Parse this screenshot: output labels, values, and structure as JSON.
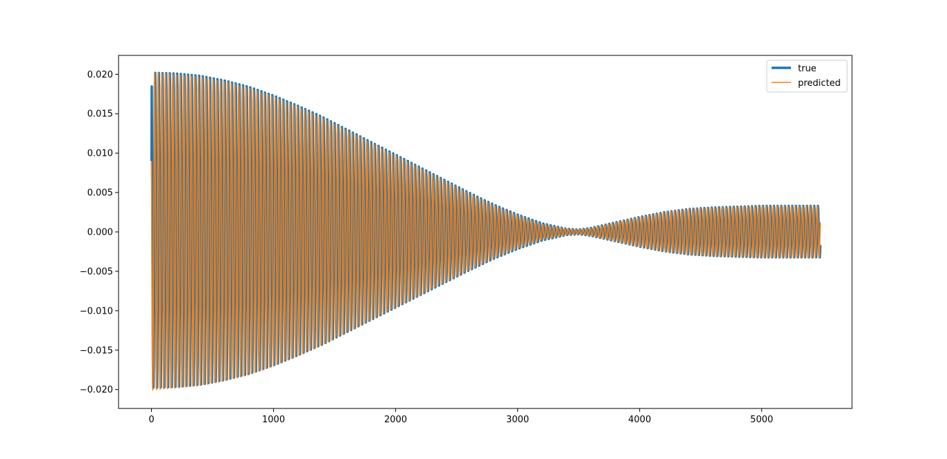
{
  "chart_data": {
    "type": "line",
    "title": "",
    "xlabel": "",
    "ylabel": "",
    "xlim": [
      -270,
      5740
    ],
    "ylim": [
      -0.0224,
      0.0224
    ],
    "grid": false,
    "legend_position": "top-right",
    "x_ticks": [
      0,
      1000,
      2000,
      3000,
      4000,
      5000
    ],
    "x_tick_labels": [
      "0",
      "1000",
      "2000",
      "3000",
      "4000",
      "5000"
    ],
    "y_ticks": [
      0.02,
      0.015,
      0.01,
      0.005,
      0.0,
      -0.005,
      -0.01,
      -0.015,
      -0.02
    ],
    "y_tick_labels": [
      "0.020",
      "0.015",
      "0.010",
      "0.005",
      "0.000",
      "−0.005",
      "−0.010",
      "−0.015",
      "−0.020"
    ],
    "oscillation_period": 30,
    "series": [
      {
        "name": "true",
        "color": "#1f77b4",
        "x": [
          0,
          200,
          400,
          600,
          800,
          1000,
          1200,
          1400,
          1600,
          1800,
          2000,
          2200,
          2400,
          2600,
          2800,
          3000,
          3200,
          3400,
          3500,
          3600,
          3800,
          4000,
          4200,
          4400,
          4600,
          4800,
          5000,
          5200,
          5480
        ],
        "envelope": [
          0.0202,
          0.0201,
          0.0198,
          0.0192,
          0.0184,
          0.0173,
          0.016,
          0.0146,
          0.013,
          0.0114,
          0.0098,
          0.0082,
          0.0066,
          0.005,
          0.0035,
          0.0022,
          0.0011,
          0.0004,
          0.0003,
          0.0005,
          0.0012,
          0.0019,
          0.0025,
          0.0029,
          0.0031,
          0.0032,
          0.0033,
          0.0033,
          0.0033
        ]
      },
      {
        "name": "predicted",
        "color": "#ff7f0e",
        "x": [
          0,
          200,
          400,
          600,
          800,
          1000,
          1200,
          1400,
          1600,
          1800,
          2000,
          2200,
          2400,
          2600,
          2800,
          3000,
          3200,
          3400,
          3500,
          3600,
          3800,
          4000,
          4200,
          4400,
          4600,
          4800,
          5000,
          5200,
          5480
        ],
        "envelope": [
          0.0203,
          0.02,
          0.0197,
          0.0191,
          0.0183,
          0.0172,
          0.0159,
          0.0145,
          0.0129,
          0.0113,
          0.0097,
          0.0081,
          0.0065,
          0.0049,
          0.0034,
          0.0021,
          0.001,
          0.0004,
          0.0003,
          0.0005,
          0.0012,
          0.0019,
          0.0025,
          0.0029,
          0.0031,
          0.0032,
          0.0033,
          0.0033,
          0.0033
        ]
      }
    ]
  }
}
